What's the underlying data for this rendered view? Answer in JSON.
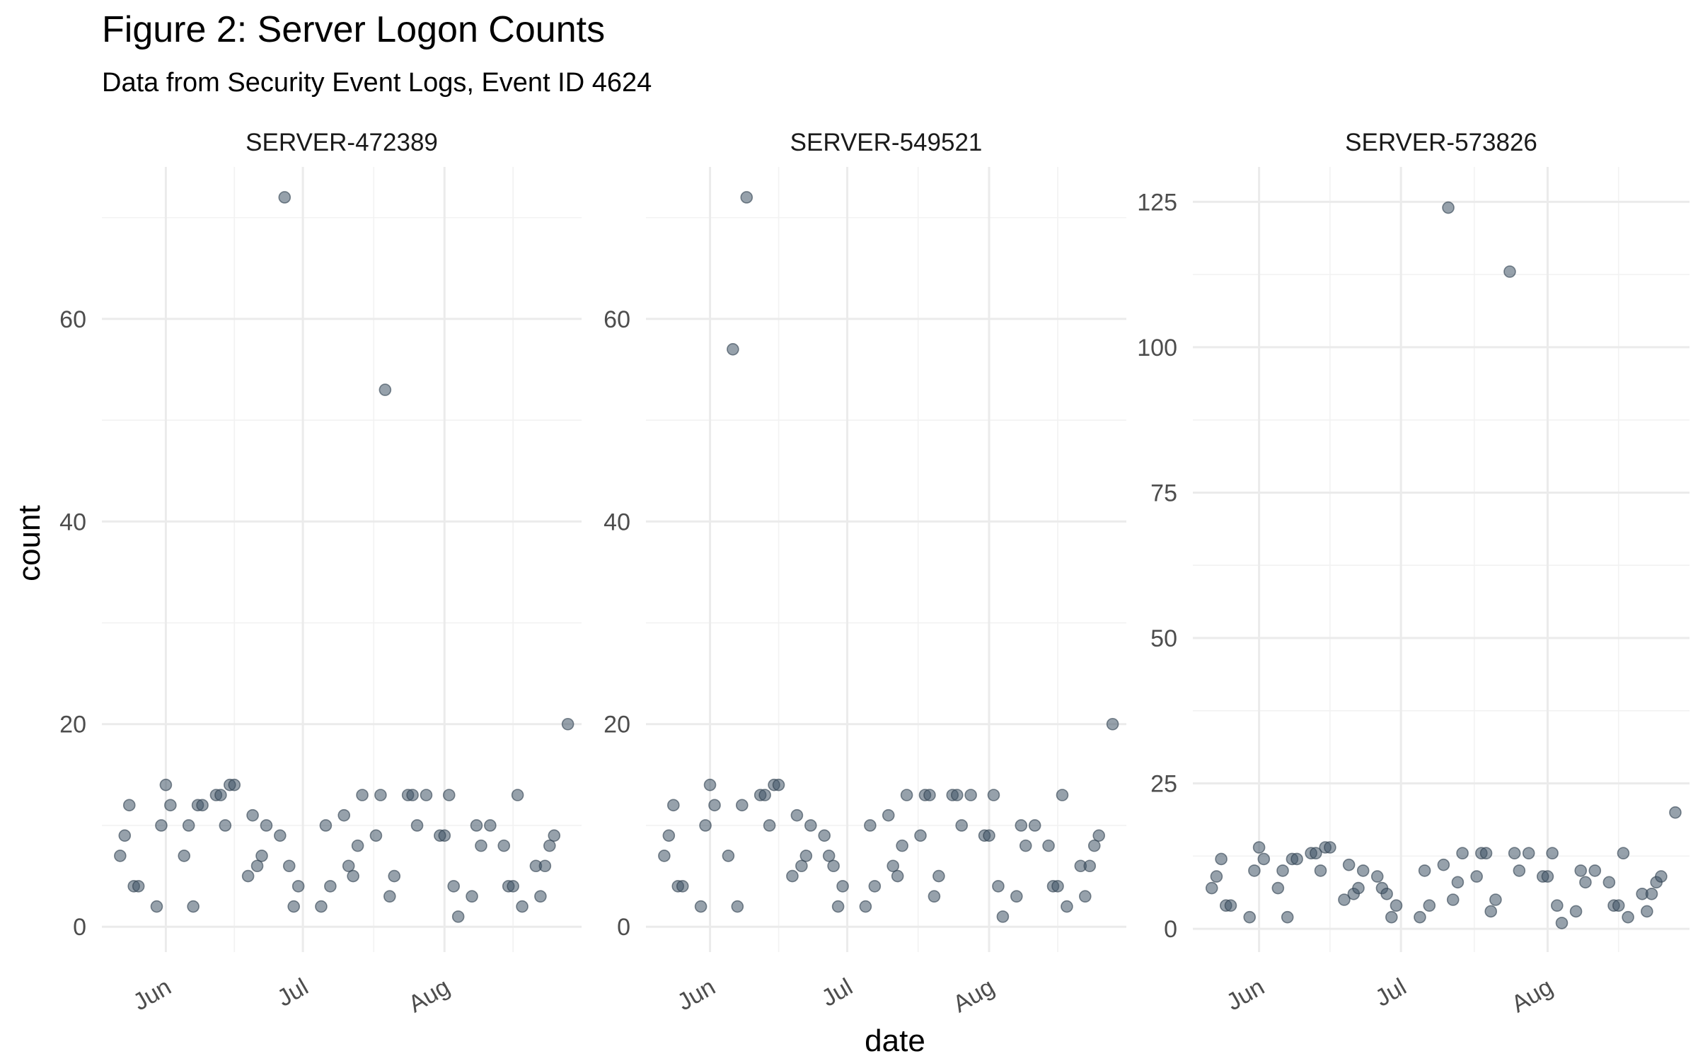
{
  "title": "Figure 2: Server Logon Counts",
  "subtitle": "Data from Security Event Logs, Event ID 4624",
  "chart_data": {
    "type": "scatter",
    "xlabel": "date",
    "ylabel": "count",
    "grid": true,
    "x_ticks": [
      "Jun",
      "Jul",
      "Aug"
    ],
    "x_tick_dates": [
      "2024-06-01",
      "2024-07-01",
      "2024-08-01"
    ],
    "xlim": [
      "2024-05-18",
      "2024-08-31"
    ],
    "panels": [
      {
        "name": "SERVER-472389",
        "ylim": [
          -2.5,
          75
        ],
        "y_ticks": [
          0,
          20,
          40,
          60
        ],
        "points": [
          [
            "2024-05-22",
            7
          ],
          [
            "2024-05-23",
            9
          ],
          [
            "2024-05-24",
            12
          ],
          [
            "2024-05-25",
            4
          ],
          [
            "2024-05-26",
            4
          ],
          [
            "2024-05-30",
            2
          ],
          [
            "2024-05-31",
            10
          ],
          [
            "2024-06-01",
            14
          ],
          [
            "2024-06-02",
            12
          ],
          [
            "2024-06-05",
            7
          ],
          [
            "2024-06-06",
            10
          ],
          [
            "2024-06-07",
            2
          ],
          [
            "2024-06-08",
            12
          ],
          [
            "2024-06-09",
            12
          ],
          [
            "2024-06-12",
            13
          ],
          [
            "2024-06-13",
            13
          ],
          [
            "2024-06-14",
            10
          ],
          [
            "2024-06-15",
            14
          ],
          [
            "2024-06-16",
            14
          ],
          [
            "2024-06-19",
            5
          ],
          [
            "2024-06-20",
            11
          ],
          [
            "2024-06-21",
            6
          ],
          [
            "2024-06-22",
            7
          ],
          [
            "2024-06-23",
            10
          ],
          [
            "2024-06-26",
            9
          ],
          [
            "2024-06-27",
            72
          ],
          [
            "2024-06-28",
            6
          ],
          [
            "2024-06-29",
            2
          ],
          [
            "2024-06-30",
            4
          ],
          [
            "2024-07-05",
            2
          ],
          [
            "2024-07-06",
            10
          ],
          [
            "2024-07-07",
            4
          ],
          [
            "2024-07-10",
            11
          ],
          [
            "2024-07-11",
            6
          ],
          [
            "2024-07-12",
            5
          ],
          [
            "2024-07-13",
            8
          ],
          [
            "2024-07-14",
            13
          ],
          [
            "2024-07-17",
            9
          ],
          [
            "2024-07-18",
            13
          ],
          [
            "2024-07-19",
            53
          ],
          [
            "2024-07-20",
            3
          ],
          [
            "2024-07-21",
            5
          ],
          [
            "2024-07-24",
            13
          ],
          [
            "2024-07-25",
            13
          ],
          [
            "2024-07-26",
            10
          ],
          [
            "2024-07-28",
            13
          ],
          [
            "2024-07-31",
            9
          ],
          [
            "2024-08-01",
            9
          ],
          [
            "2024-08-02",
            13
          ],
          [
            "2024-08-03",
            4
          ],
          [
            "2024-08-04",
            1
          ],
          [
            "2024-08-07",
            3
          ],
          [
            "2024-08-08",
            10
          ],
          [
            "2024-08-09",
            8
          ],
          [
            "2024-08-11",
            10
          ],
          [
            "2024-08-14",
            8
          ],
          [
            "2024-08-15",
            4
          ],
          [
            "2024-08-16",
            4
          ],
          [
            "2024-08-17",
            13
          ],
          [
            "2024-08-18",
            2
          ],
          [
            "2024-08-21",
            6
          ],
          [
            "2024-08-22",
            3
          ],
          [
            "2024-08-23",
            6
          ],
          [
            "2024-08-24",
            8
          ],
          [
            "2024-08-25",
            9
          ],
          [
            "2024-08-28",
            20
          ]
        ]
      },
      {
        "name": "SERVER-549521",
        "ylim": [
          -2.5,
          75
        ],
        "y_ticks": [
          0,
          20,
          40,
          60
        ],
        "points": [
          [
            "2024-05-22",
            7
          ],
          [
            "2024-05-23",
            9
          ],
          [
            "2024-05-24",
            12
          ],
          [
            "2024-05-25",
            4
          ],
          [
            "2024-05-26",
            4
          ],
          [
            "2024-05-30",
            2
          ],
          [
            "2024-05-31",
            10
          ],
          [
            "2024-06-01",
            14
          ],
          [
            "2024-06-02",
            12
          ],
          [
            "2024-06-05",
            7
          ],
          [
            "2024-06-06",
            57
          ],
          [
            "2024-06-07",
            2
          ],
          [
            "2024-06-08",
            12
          ],
          [
            "2024-06-09",
            72
          ],
          [
            "2024-06-12",
            13
          ],
          [
            "2024-06-13",
            13
          ],
          [
            "2024-06-14",
            10
          ],
          [
            "2024-06-15",
            14
          ],
          [
            "2024-06-16",
            14
          ],
          [
            "2024-06-19",
            5
          ],
          [
            "2024-06-20",
            11
          ],
          [
            "2024-06-21",
            6
          ],
          [
            "2024-06-22",
            7
          ],
          [
            "2024-06-23",
            10
          ],
          [
            "2024-06-26",
            9
          ],
          [
            "2024-06-27",
            7
          ],
          [
            "2024-06-28",
            6
          ],
          [
            "2024-06-29",
            2
          ],
          [
            "2024-06-30",
            4
          ],
          [
            "2024-07-05",
            2
          ],
          [
            "2024-07-06",
            10
          ],
          [
            "2024-07-07",
            4
          ],
          [
            "2024-07-10",
            11
          ],
          [
            "2024-07-11",
            6
          ],
          [
            "2024-07-12",
            5
          ],
          [
            "2024-07-13",
            8
          ],
          [
            "2024-07-14",
            13
          ],
          [
            "2024-07-17",
            9
          ],
          [
            "2024-07-18",
            13
          ],
          [
            "2024-07-19",
            13
          ],
          [
            "2024-07-20",
            3
          ],
          [
            "2024-07-21",
            5
          ],
          [
            "2024-07-24",
            13
          ],
          [
            "2024-07-25",
            13
          ],
          [
            "2024-07-26",
            10
          ],
          [
            "2024-07-28",
            13
          ],
          [
            "2024-07-31",
            9
          ],
          [
            "2024-08-01",
            9
          ],
          [
            "2024-08-02",
            13
          ],
          [
            "2024-08-03",
            4
          ],
          [
            "2024-08-04",
            1
          ],
          [
            "2024-08-07",
            3
          ],
          [
            "2024-08-08",
            10
          ],
          [
            "2024-08-09",
            8
          ],
          [
            "2024-08-11",
            10
          ],
          [
            "2024-08-14",
            8
          ],
          [
            "2024-08-15",
            4
          ],
          [
            "2024-08-16",
            4
          ],
          [
            "2024-08-17",
            13
          ],
          [
            "2024-08-18",
            2
          ],
          [
            "2024-08-21",
            6
          ],
          [
            "2024-08-22",
            3
          ],
          [
            "2024-08-23",
            6
          ],
          [
            "2024-08-24",
            8
          ],
          [
            "2024-08-25",
            9
          ],
          [
            "2024-08-28",
            20
          ]
        ]
      },
      {
        "name": "SERVER-573826",
        "ylim": [
          -4,
          131
        ],
        "y_ticks": [
          0,
          25,
          50,
          75,
          100,
          125
        ],
        "points": [
          [
            "2024-05-22",
            7
          ],
          [
            "2024-05-23",
            9
          ],
          [
            "2024-05-24",
            12
          ],
          [
            "2024-05-25",
            4
          ],
          [
            "2024-05-26",
            4
          ],
          [
            "2024-05-30",
            2
          ],
          [
            "2024-05-31",
            10
          ],
          [
            "2024-06-01",
            14
          ],
          [
            "2024-06-02",
            12
          ],
          [
            "2024-06-05",
            7
          ],
          [
            "2024-06-06",
            10
          ],
          [
            "2024-06-07",
            2
          ],
          [
            "2024-06-08",
            12
          ],
          [
            "2024-06-09",
            12
          ],
          [
            "2024-06-12",
            13
          ],
          [
            "2024-06-13",
            13
          ],
          [
            "2024-06-14",
            10
          ],
          [
            "2024-06-15",
            14
          ],
          [
            "2024-06-16",
            14
          ],
          [
            "2024-06-19",
            5
          ],
          [
            "2024-06-20",
            11
          ],
          [
            "2024-06-21",
            6
          ],
          [
            "2024-06-22",
            7
          ],
          [
            "2024-06-23",
            10
          ],
          [
            "2024-06-26",
            9
          ],
          [
            "2024-06-27",
            7
          ],
          [
            "2024-06-28",
            6
          ],
          [
            "2024-06-29",
            2
          ],
          [
            "2024-06-30",
            4
          ],
          [
            "2024-07-05",
            2
          ],
          [
            "2024-07-06",
            10
          ],
          [
            "2024-07-07",
            4
          ],
          [
            "2024-07-10",
            11
          ],
          [
            "2024-07-11",
            124
          ],
          [
            "2024-07-12",
            5
          ],
          [
            "2024-07-13",
            8
          ],
          [
            "2024-07-14",
            13
          ],
          [
            "2024-07-17",
            9
          ],
          [
            "2024-07-18",
            13
          ],
          [
            "2024-07-19",
            13
          ],
          [
            "2024-07-20",
            3
          ],
          [
            "2024-07-21",
            5
          ],
          [
            "2024-07-24",
            113
          ],
          [
            "2024-07-25",
            13
          ],
          [
            "2024-07-26",
            10
          ],
          [
            "2024-07-28",
            13
          ],
          [
            "2024-07-31",
            9
          ],
          [
            "2024-08-01",
            9
          ],
          [
            "2024-08-02",
            13
          ],
          [
            "2024-08-03",
            4
          ],
          [
            "2024-08-04",
            1
          ],
          [
            "2024-08-07",
            3
          ],
          [
            "2024-08-08",
            10
          ],
          [
            "2024-08-09",
            8
          ],
          [
            "2024-08-11",
            10
          ],
          [
            "2024-08-14",
            8
          ],
          [
            "2024-08-15",
            4
          ],
          [
            "2024-08-16",
            4
          ],
          [
            "2024-08-17",
            13
          ],
          [
            "2024-08-18",
            2
          ],
          [
            "2024-08-21",
            6
          ],
          [
            "2024-08-22",
            3
          ],
          [
            "2024-08-23",
            6
          ],
          [
            "2024-08-24",
            8
          ],
          [
            "2024-08-25",
            9
          ],
          [
            "2024-08-28",
            20
          ]
        ]
      }
    ]
  }
}
